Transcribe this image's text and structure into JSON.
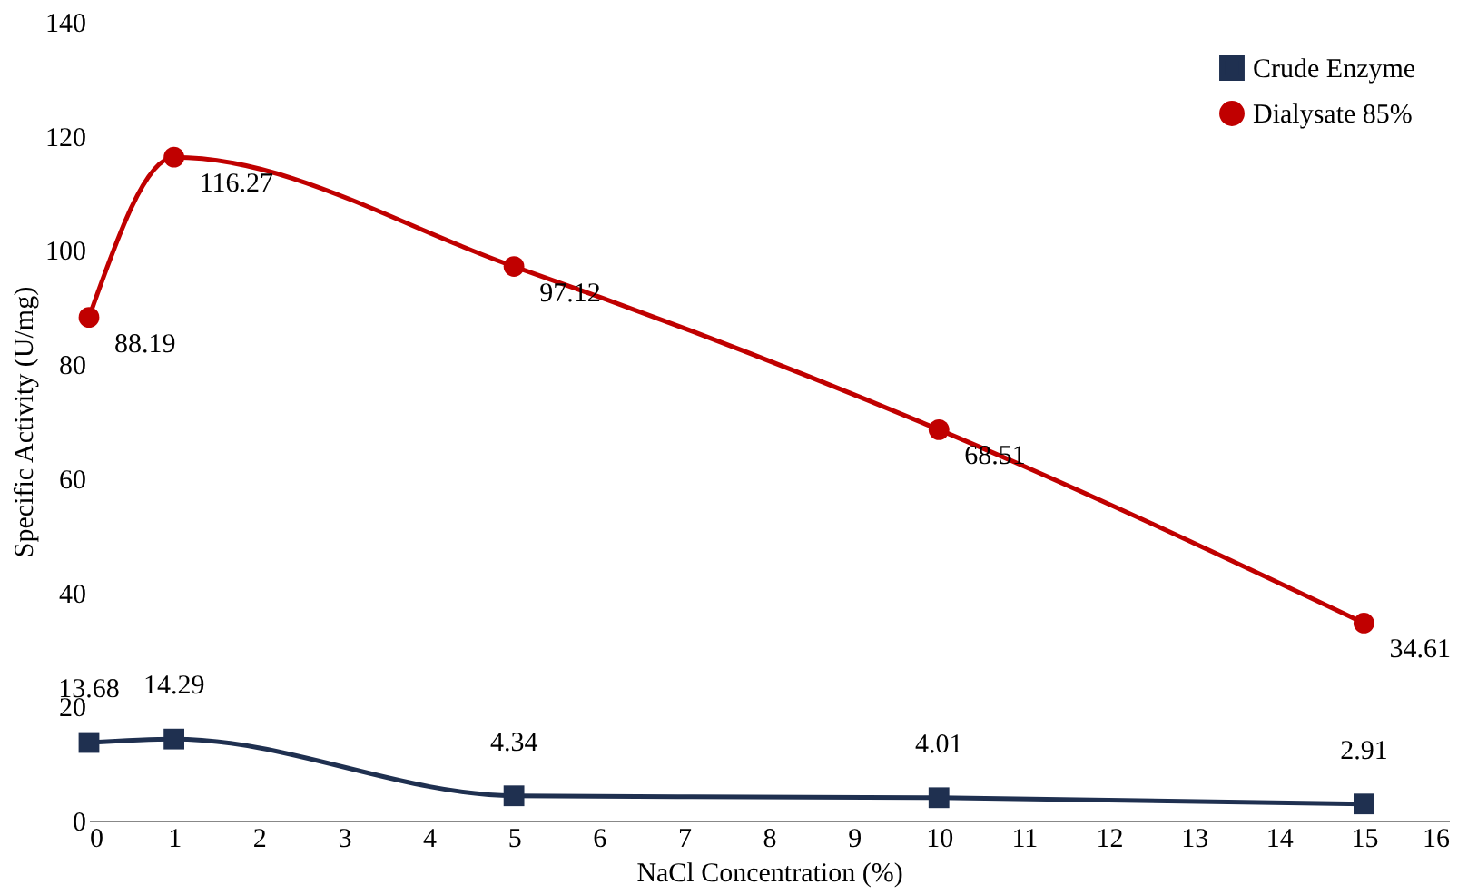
{
  "chart_data": {
    "type": "line",
    "xlabel": "NaCl Concentration (%)",
    "ylabel": "Specific Activity (U/mg)",
    "x": [
      0,
      1,
      5,
      10,
      15
    ],
    "series": [
      {
        "name": "Crude Enzyme",
        "color": "#1f3050",
        "marker": "square",
        "values": [
          13.68,
          14.29,
          4.34,
          4.01,
          2.91
        ]
      },
      {
        "name": "Dialysate 85%",
        "color": "#c00000",
        "marker": "circle",
        "values": [
          88.19,
          116.27,
          97.12,
          68.51,
          34.61
        ]
      }
    ],
    "xlim": [
      0,
      16
    ],
    "xticks": [
      0,
      1,
      2,
      3,
      4,
      5,
      6,
      7,
      8,
      9,
      10,
      11,
      12,
      13,
      14,
      15,
      16
    ],
    "ylim": [
      0,
      140
    ],
    "yticks": [
      0,
      20,
      40,
      60,
      80,
      100,
      120,
      140
    ],
    "data_labels": true,
    "grid": false,
    "legend": "top right",
    "line_style": "solid"
  }
}
